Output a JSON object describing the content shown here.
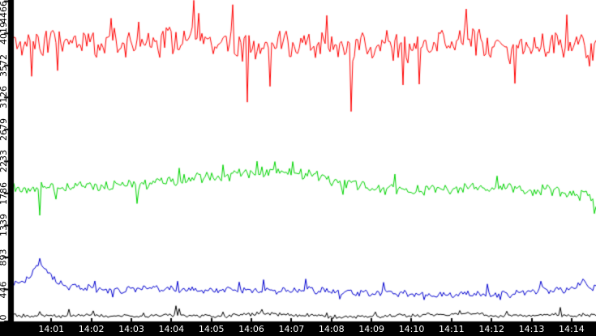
{
  "chart_data": {
    "type": "line",
    "title": "",
    "background": "#ffffff",
    "axis_color": "#000000",
    "grid": false,
    "legend": false,
    "x_axis": {
      "unit": "time-of-day",
      "tick_labels": [
        "14:01",
        "14:02",
        "14:03",
        "14:04",
        "14:05",
        "14:06",
        "14:07",
        "14:08",
        "14:09",
        "14:10",
        "14:11",
        "14:12",
        "14:13",
        "14:14"
      ],
      "first_tick_minute": 1,
      "visible_span_minutes": [
        0.06,
        14.61
      ],
      "tick_label_color": "#ffffff"
    },
    "y_axis": {
      "min": 0,
      "max": 4466,
      "ticks": [
        0,
        446,
        893,
        1339,
        1786,
        2233,
        2679,
        3126,
        3572,
        4019,
        4466
      ],
      "tick_label_color": "#000000",
      "labels_rotated_degrees": -90
    },
    "noise_pattern_a": [
      0.15,
      -0.62,
      0.85,
      -0.21,
      1.0,
      -0.88,
      0.33,
      0.52,
      -1.0,
      0.72,
      -0.45,
      0.18,
      0.9,
      -0.7,
      -0.1,
      0.6,
      -0.82,
      0.42,
      -0.3,
      0.96,
      -0.55,
      0.05,
      0.78,
      -0.95
    ],
    "noise_pattern_b": [
      0.3,
      -0.8,
      0.5,
      0.02,
      -0.42,
      0.9,
      -0.62,
      0.22,
      0.7,
      -1.0,
      0.44,
      -0.18,
      0.82,
      -0.5,
      0.12,
      -0.9,
      0.6
    ],
    "series": [
      {
        "name": "red",
        "color": "#ff0000",
        "noise": {
          "amp": 200,
          "s1": 7,
          "p1": 2,
          "s2": 5,
          "p2": 1
        },
        "trend": [
          [
            0,
            3950
          ],
          [
            0.4,
            3870
          ],
          [
            0.9,
            3900
          ],
          [
            1.4,
            3930
          ],
          [
            1.9,
            3860
          ],
          [
            2.4,
            3900
          ],
          [
            2.9,
            3850
          ],
          [
            3.4,
            3890
          ],
          [
            3.9,
            3910
          ],
          [
            4.5,
            3960
          ],
          [
            4.9,
            3900
          ],
          [
            5.4,
            3870
          ],
          [
            5.9,
            3820
          ],
          [
            6.4,
            3850
          ],
          [
            6.9,
            3880
          ],
          [
            7.4,
            3840
          ],
          [
            7.9,
            3870
          ],
          [
            8.4,
            3800
          ],
          [
            8.9,
            3830
          ],
          [
            9.4,
            3860
          ],
          [
            9.9,
            3820
          ],
          [
            10.4,
            3850
          ],
          [
            10.9,
            3890
          ],
          [
            11.35,
            3960
          ],
          [
            11.8,
            3870
          ],
          [
            12.2,
            3820
          ],
          [
            12.6,
            3780
          ],
          [
            13.0,
            3850
          ],
          [
            13.5,
            3820
          ],
          [
            14.0,
            3870
          ],
          [
            14.61,
            3820
          ]
        ],
        "spikes": [
          [
            0.5,
            3420
          ],
          [
            1.15,
            3500
          ],
          [
            2.5,
            4230
          ],
          [
            3.2,
            4180
          ],
          [
            4.55,
            4480
          ],
          [
            4.7,
            4300
          ],
          [
            5.55,
            4420
          ],
          [
            5.9,
            3060
          ],
          [
            6.45,
            3280
          ],
          [
            7.9,
            4270
          ],
          [
            8.5,
            2930
          ],
          [
            9.8,
            3300
          ],
          [
            10.2,
            3310
          ],
          [
            11.35,
            4360
          ],
          [
            12.6,
            3320
          ],
          [
            13.9,
            4280
          ],
          [
            14.45,
            3560
          ]
        ]
      },
      {
        "name": "green",
        "color": "#00d400",
        "noise": {
          "amp": 80,
          "s1": 11,
          "p1": 9,
          "s2": 8,
          "p2": 5
        },
        "trend": [
          [
            0,
            1860
          ],
          [
            0.5,
            1850
          ],
          [
            1,
            1865
          ],
          [
            1.5,
            1880
          ],
          [
            2,
            1890
          ],
          [
            2.5,
            1885
          ],
          [
            3,
            1905
          ],
          [
            3.5,
            1930
          ],
          [
            4,
            1955
          ],
          [
            4.5,
            1990
          ],
          [
            5,
            2015
          ],
          [
            5.5,
            2045
          ],
          [
            6,
            2070
          ],
          [
            6.4,
            2085
          ],
          [
            6.8,
            2070
          ],
          [
            7.1,
            2080
          ],
          [
            7.5,
            2040
          ],
          [
            8,
            1975
          ],
          [
            8.5,
            1915
          ],
          [
            9,
            1865
          ],
          [
            9.5,
            1840
          ],
          [
            10,
            1825
          ],
          [
            10.5,
            1838
          ],
          [
            11,
            1852
          ],
          [
            11.5,
            1862
          ],
          [
            12,
            1852
          ],
          [
            12.35,
            1868
          ],
          [
            12.7,
            1838
          ],
          [
            13.05,
            1818
          ],
          [
            13.4,
            1838
          ],
          [
            13.8,
            1800
          ],
          [
            14.2,
            1775
          ],
          [
            14.45,
            1755
          ],
          [
            14.61,
            1580
          ]
        ],
        "spikes": [
          [
            0.72,
            1480
          ],
          [
            1.1,
            1705
          ],
          [
            3.15,
            1645
          ],
          [
            4.2,
            2140
          ],
          [
            5.3,
            2185
          ],
          [
            6.15,
            2235
          ],
          [
            6.6,
            2230
          ],
          [
            7.05,
            2230
          ],
          [
            8.3,
            1770
          ],
          [
            9.6,
            2055
          ],
          [
            12.15,
            2030
          ],
          [
            14.58,
            1505
          ]
        ]
      },
      {
        "name": "blue",
        "color": "#0000d0",
        "noise": {
          "amp": 50,
          "s1": 5,
          "p1": 14,
          "s2": 11,
          "p2": 9
        },
        "trend": [
          [
            0,
            520
          ],
          [
            0.3,
            560
          ],
          [
            0.5,
            640
          ],
          [
            0.65,
            760
          ],
          [
            0.75,
            820
          ],
          [
            0.9,
            700
          ],
          [
            1.1,
            560
          ],
          [
            1.4,
            490
          ],
          [
            1.8,
            470
          ],
          [
            2.2,
            452
          ],
          [
            2.6,
            425
          ],
          [
            3,
            452
          ],
          [
            3.4,
            470
          ],
          [
            3.8,
            452
          ],
          [
            4.2,
            442
          ],
          [
            4.6,
            432
          ],
          [
            5,
            432
          ],
          [
            5.5,
            442
          ],
          [
            6,
            430
          ],
          [
            6.5,
            422
          ],
          [
            7,
            432
          ],
          [
            7.5,
            440
          ],
          [
            8,
            420
          ],
          [
            8.5,
            402
          ],
          [
            9,
            392
          ],
          [
            9.5,
            402
          ],
          [
            10,
            382
          ],
          [
            10.5,
            362
          ],
          [
            11,
            372
          ],
          [
            11.5,
            382
          ],
          [
            12,
            372
          ],
          [
            12.5,
            385
          ],
          [
            13,
            422
          ],
          [
            13.3,
            442
          ],
          [
            13.7,
            432
          ],
          [
            14,
            462
          ],
          [
            14.2,
            502
          ],
          [
            14.35,
            522
          ],
          [
            14.5,
            485
          ],
          [
            14.61,
            472
          ]
        ],
        "spikes": [
          [
            0.73,
            880
          ],
          [
            2.1,
            565
          ],
          [
            2.55,
            338
          ],
          [
            4.15,
            562
          ],
          [
            5.7,
            550
          ],
          [
            6.3,
            582
          ],
          [
            7.35,
            592
          ],
          [
            8.2,
            312
          ],
          [
            9.3,
            545
          ],
          [
            10.3,
            302
          ],
          [
            11.9,
            522
          ],
          [
            12.2,
            302
          ],
          [
            13.25,
            562
          ],
          [
            14.3,
            592
          ]
        ]
      },
      {
        "name": "black",
        "color": "#000000",
        "noise": {
          "amp": 27,
          "s1": 13,
          "p1": 6,
          "s2": 4,
          "p2": 12
        },
        "trend": [
          [
            0,
            85
          ],
          [
            0.5,
            80
          ],
          [
            1,
            75
          ],
          [
            1.5,
            80
          ],
          [
            2,
            86
          ],
          [
            2.5,
            76
          ],
          [
            3,
            70
          ],
          [
            3.5,
            76
          ],
          [
            4,
            88
          ],
          [
            4.3,
            92
          ],
          [
            4.6,
            76
          ],
          [
            5,
            70
          ],
          [
            5.5,
            80
          ],
          [
            5.9,
            96
          ],
          [
            6.2,
            118
          ],
          [
            6.5,
            108
          ],
          [
            6.8,
            90
          ],
          [
            7.1,
            86
          ],
          [
            7.4,
            92
          ],
          [
            7.7,
            72
          ],
          [
            8,
            66
          ],
          [
            8.5,
            60
          ],
          [
            9,
            70
          ],
          [
            9.5,
            76
          ],
          [
            10,
            82
          ],
          [
            10.3,
            96
          ],
          [
            10.7,
            86
          ],
          [
            11,
            100
          ],
          [
            11.3,
            112
          ],
          [
            11.6,
            104
          ],
          [
            12,
            80
          ],
          [
            12.5,
            76
          ],
          [
            13,
            86
          ],
          [
            13.5,
            92
          ],
          [
            14,
            80
          ],
          [
            14.3,
            92
          ],
          [
            14.61,
            72
          ]
        ],
        "spikes": [
          [
            0.7,
            138
          ],
          [
            1.44,
            170
          ],
          [
            2.05,
            148
          ],
          [
            3.3,
            118
          ],
          [
            4.1,
            218
          ],
          [
            4.2,
            178
          ],
          [
            5.3,
            132
          ],
          [
            6.25,
            168
          ],
          [
            7.9,
            120
          ],
          [
            9.1,
            132
          ],
          [
            11.2,
            152
          ],
          [
            12.4,
            142
          ],
          [
            13.7,
            196
          ]
        ]
      }
    ]
  }
}
